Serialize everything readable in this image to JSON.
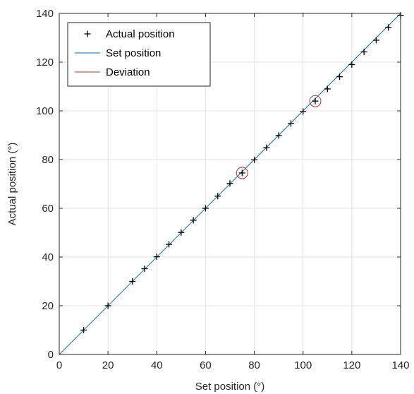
{
  "chart_data": {
    "type": "line",
    "xlabel": "Set position (°)",
    "ylabel": "Actual position (°)",
    "xlim": [
      0,
      140
    ],
    "ylim": [
      0,
      140
    ],
    "xticks": [
      0,
      20,
      40,
      60,
      80,
      100,
      120,
      140
    ],
    "yticks": [
      0,
      20,
      40,
      60,
      80,
      100,
      120,
      140
    ],
    "grid": true,
    "legend_position": "top-left",
    "series": [
      {
        "name": "Actual position",
        "kind": "scatter",
        "marker": "plus",
        "color": "#000000",
        "x": [
          10,
          20,
          30,
          35,
          40,
          45,
          50,
          55,
          60,
          65,
          70,
          75,
          80,
          85,
          90,
          95,
          100,
          105,
          110,
          115,
          120,
          125,
          130,
          135,
          140
        ],
        "y": [
          10,
          20,
          30,
          35.2,
          40.1,
          45.2,
          50.1,
          55.1,
          60,
          65,
          70.2,
          74.5,
          79.9,
          84.9,
          89.9,
          94.8,
          99.7,
          104,
          109,
          114,
          119,
          124.2,
          129,
          134.2,
          139.2
        ]
      },
      {
        "name": "Set position",
        "kind": "line",
        "color": "#0072bd",
        "x": [
          0,
          140
        ],
        "y": [
          0,
          140
        ]
      },
      {
        "name": "Deviation",
        "kind": "circle",
        "color": "#d62728",
        "x": [
          75,
          105
        ],
        "y": [
          74.5,
          104
        ]
      }
    ]
  }
}
